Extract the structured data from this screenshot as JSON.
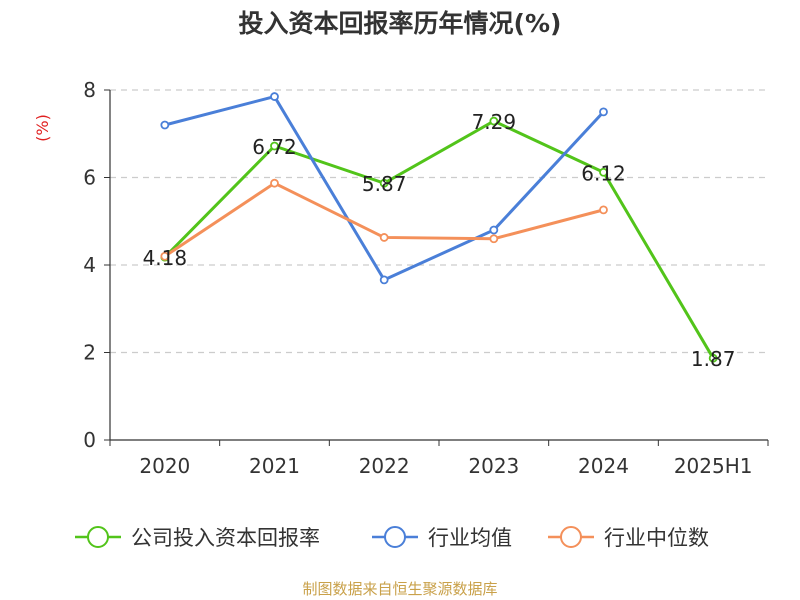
{
  "chart_data": {
    "type": "line",
    "title": "投入资本回报率历年情况(%)",
    "ylabel": "(%)",
    "xlabel": "",
    "categories": [
      "2020",
      "2021",
      "2022",
      "2023",
      "2024",
      "2025H1"
    ],
    "ylim": [
      0,
      8
    ],
    "yticks": [
      0,
      2,
      4,
      6,
      8
    ],
    "grid": true,
    "legend_position": "bottom",
    "series": [
      {
        "name": "公司投入资本回报率",
        "color": "#52c41a",
        "values": [
          4.18,
          6.72,
          5.87,
          7.29,
          6.12,
          1.87
        ],
        "show_labels": true
      },
      {
        "name": "行业均值",
        "color": "#4a7fd8",
        "values": [
          7.2,
          7.85,
          3.66,
          4.8,
          7.5,
          null
        ],
        "show_labels": false
      },
      {
        "name": "行业中位数",
        "color": "#f4905a",
        "values": [
          4.2,
          5.87,
          4.63,
          4.6,
          5.26,
          null
        ],
        "show_labels": false
      }
    ]
  },
  "source": "制图数据来自恒生聚源数据库"
}
